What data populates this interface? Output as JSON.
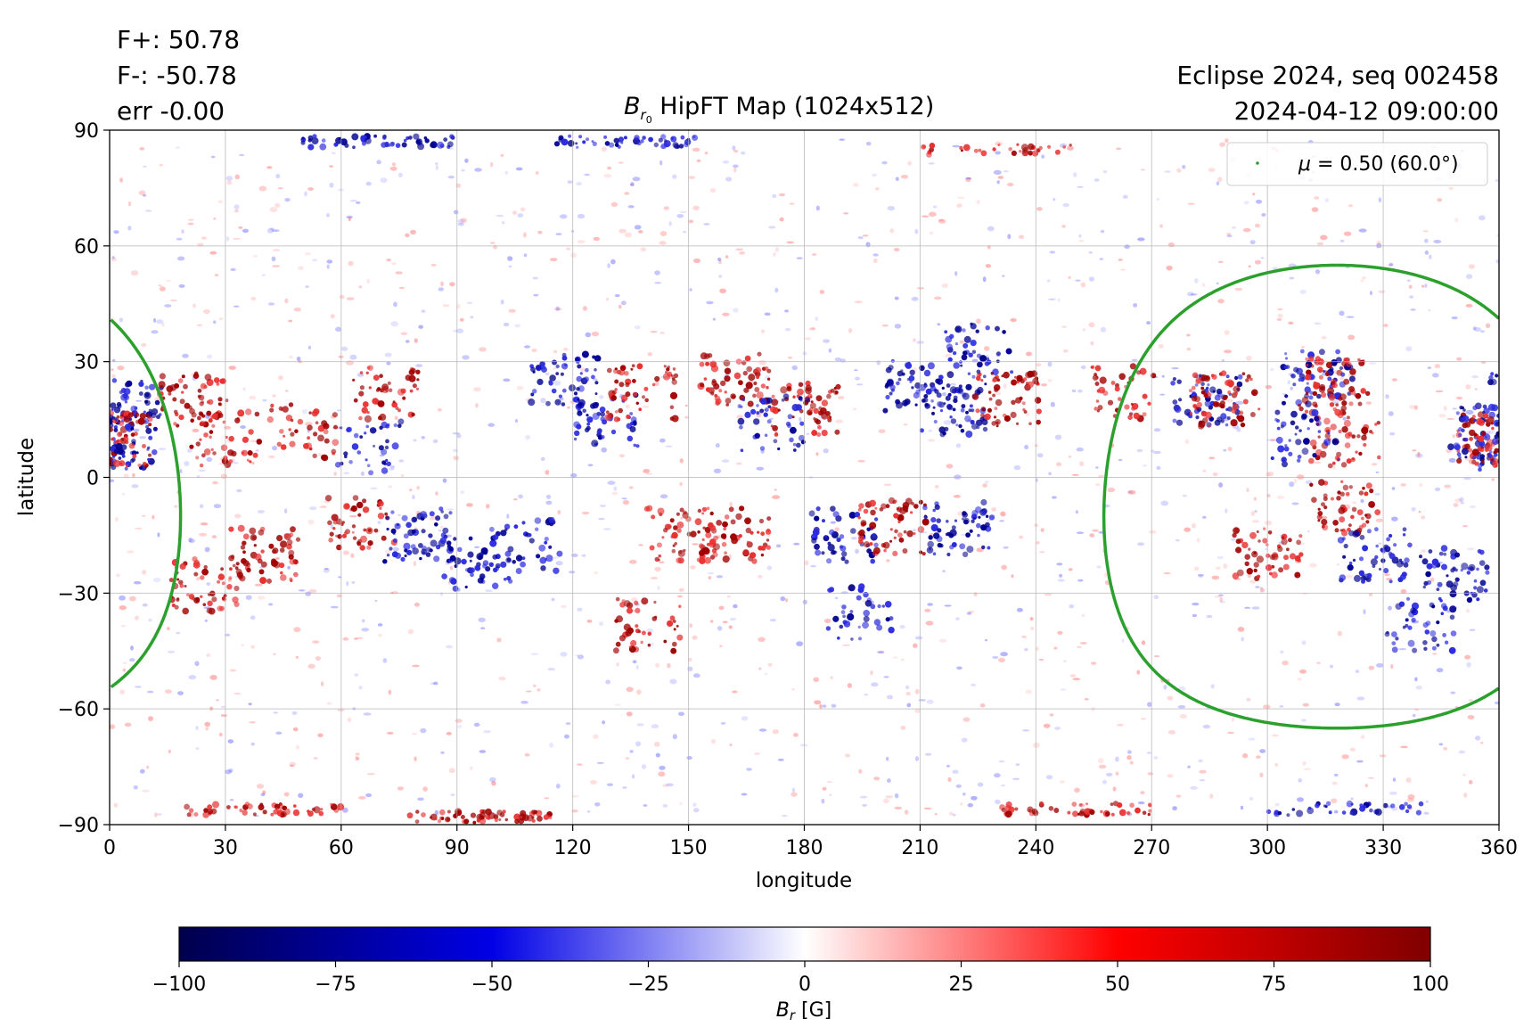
{
  "stats": {
    "f_plus": "F+: 50.78",
    "f_minus": "F-: -50.78",
    "err": "err -0.00"
  },
  "title": {
    "symbol": "B",
    "sub": "r",
    "subsub": "0",
    "text": "HipFT Map (1024x512)"
  },
  "info": {
    "line1": "Eclipse 2024, seq 002458",
    "line2": "2024-04-12 09:00:00"
  },
  "legend": {
    "symbol": "μ",
    "text": " = 0.50 (60.0°)",
    "color": "#2ca02c"
  },
  "chart_data": {
    "type": "heatmap",
    "xlabel": "longitude",
    "ylabel": "latitude",
    "xlim": [
      0,
      360
    ],
    "ylim": [
      -90,
      90
    ],
    "xticks": [
      0,
      30,
      60,
      90,
      120,
      150,
      180,
      210,
      240,
      270,
      300,
      330,
      360
    ],
    "yticks": [
      90,
      60,
      30,
      0,
      -30,
      -60,
      -90
    ],
    "ytick_labels": [
      "90",
      "60",
      "30",
      "0",
      "−30",
      "−60",
      "−90"
    ],
    "grid": true,
    "colormap": "seismic",
    "color_range": [
      -100,
      100
    ],
    "colorbar": {
      "ticks": [
        -100,
        -75,
        -50,
        -25,
        0,
        25,
        50,
        75,
        100
      ],
      "tick_labels": [
        "−100",
        "−75",
        "−50",
        "−25",
        "0",
        "25",
        "50",
        "75",
        "100"
      ],
      "label_symbol": "B",
      "label_sub": "r",
      "label_unit": " [G]"
    },
    "contour": {
      "name": "μ = 0.50 (60.0°)",
      "color": "#2ca02c",
      "center": [
        318,
        -5
      ],
      "radius_deg": 60
    },
    "field_regions": [
      {
        "lon": 5,
        "lat": 20,
        "polarity": "neg",
        "strength": 0.9
      },
      {
        "lon": 3,
        "lat": 8,
        "polarity": "neg",
        "strength": 1.0
      },
      {
        "lon": 2,
        "lat": 10,
        "polarity": "pos",
        "strength": 0.8
      },
      {
        "lon": 22,
        "lat": 20,
        "polarity": "pos",
        "strength": 0.9
      },
      {
        "lon": 30,
        "lat": 10,
        "polarity": "pos",
        "strength": 0.8
      },
      {
        "lon": 50,
        "lat": 12,
        "polarity": "pos",
        "strength": 0.7
      },
      {
        "lon": 72,
        "lat": 22,
        "polarity": "pos",
        "strength": 0.8
      },
      {
        "lon": 68,
        "lat": 8,
        "polarity": "neg",
        "strength": 0.6
      },
      {
        "lon": 118,
        "lat": 25,
        "polarity": "neg",
        "strength": 0.9
      },
      {
        "lon": 128,
        "lat": 15,
        "polarity": "neg",
        "strength": 0.8
      },
      {
        "lon": 138,
        "lat": 22,
        "polarity": "pos",
        "strength": 0.9
      },
      {
        "lon": 162,
        "lat": 25,
        "polarity": "pos",
        "strength": 1.0
      },
      {
        "lon": 180,
        "lat": 18,
        "polarity": "pos",
        "strength": 1.0
      },
      {
        "lon": 172,
        "lat": 14,
        "polarity": "neg",
        "strength": 0.7
      },
      {
        "lon": 210,
        "lat": 24,
        "polarity": "neg",
        "strength": 1.0
      },
      {
        "lon": 218,
        "lat": 18,
        "polarity": "neg",
        "strength": 1.0
      },
      {
        "lon": 232,
        "lat": 20,
        "polarity": "pos",
        "strength": 1.0
      },
      {
        "lon": 225,
        "lat": 33,
        "polarity": "neg",
        "strength": 0.7
      },
      {
        "lon": 262,
        "lat": 22,
        "polarity": "pos",
        "strength": 0.7
      },
      {
        "lon": 284,
        "lat": 20,
        "polarity": "neg",
        "strength": 1.0
      },
      {
        "lon": 289,
        "lat": 20,
        "polarity": "pos",
        "strength": 1.0
      },
      {
        "lon": 313,
        "lat": 26,
        "polarity": "neg",
        "strength": 1.0
      },
      {
        "lon": 317,
        "lat": 24,
        "polarity": "pos",
        "strength": 1.0
      },
      {
        "lon": 320,
        "lat": 10,
        "polarity": "pos",
        "strength": 0.9
      },
      {
        "lon": 310,
        "lat": 10,
        "polarity": "neg",
        "strength": 0.7
      },
      {
        "lon": 358,
        "lat": 10,
        "polarity": "pos",
        "strength": 0.9
      },
      {
        "lon": 356,
        "lat": 12,
        "polarity": "neg",
        "strength": 0.8
      },
      {
        "lon": 40,
        "lat": -20,
        "polarity": "pos",
        "strength": 1.0
      },
      {
        "lon": 25,
        "lat": -28,
        "polarity": "pos",
        "strength": 0.9
      },
      {
        "lon": 65,
        "lat": -12,
        "polarity": "pos",
        "strength": 0.8
      },
      {
        "lon": 80,
        "lat": -15,
        "polarity": "neg",
        "strength": 1.0
      },
      {
        "lon": 95,
        "lat": -22,
        "polarity": "neg",
        "strength": 0.8
      },
      {
        "lon": 108,
        "lat": -18,
        "polarity": "neg",
        "strength": 0.7
      },
      {
        "lon": 148,
        "lat": -15,
        "polarity": "pos",
        "strength": 0.9
      },
      {
        "lon": 162,
        "lat": -15,
        "polarity": "pos",
        "strength": 0.9
      },
      {
        "lon": 140,
        "lat": -38,
        "polarity": "pos",
        "strength": 0.7
      },
      {
        "lon": 190,
        "lat": -15,
        "polarity": "neg",
        "strength": 0.8
      },
      {
        "lon": 203,
        "lat": -13,
        "polarity": "pos",
        "strength": 1.0
      },
      {
        "lon": 220,
        "lat": -13,
        "polarity": "neg",
        "strength": 1.0
      },
      {
        "lon": 195,
        "lat": -35,
        "polarity": "neg",
        "strength": 0.6
      },
      {
        "lon": 300,
        "lat": -20,
        "polarity": "pos",
        "strength": 0.9
      },
      {
        "lon": 320,
        "lat": -8,
        "polarity": "pos",
        "strength": 0.9
      },
      {
        "lon": 328,
        "lat": -20,
        "polarity": "neg",
        "strength": 0.9
      },
      {
        "lon": 348,
        "lat": -25,
        "polarity": "neg",
        "strength": 0.9
      },
      {
        "lon": 340,
        "lat": -38,
        "polarity": "neg",
        "strength": 0.7
      },
      {
        "lon": 70,
        "lat": 87,
        "polarity": "neg",
        "strength": 0.9
      },
      {
        "lon": 135,
        "lat": 87,
        "polarity": "neg",
        "strength": 0.8
      },
      {
        "lon": 230,
        "lat": 85,
        "polarity": "pos",
        "strength": 0.6
      },
      {
        "lon": 40,
        "lat": -86,
        "polarity": "pos",
        "strength": 0.8
      },
      {
        "lon": 95,
        "lat": -88,
        "polarity": "pos",
        "strength": 1.0
      },
      {
        "lon": 250,
        "lat": -86,
        "polarity": "pos",
        "strength": 0.8
      },
      {
        "lon": 320,
        "lat": -86,
        "polarity": "neg",
        "strength": 0.6
      }
    ]
  }
}
